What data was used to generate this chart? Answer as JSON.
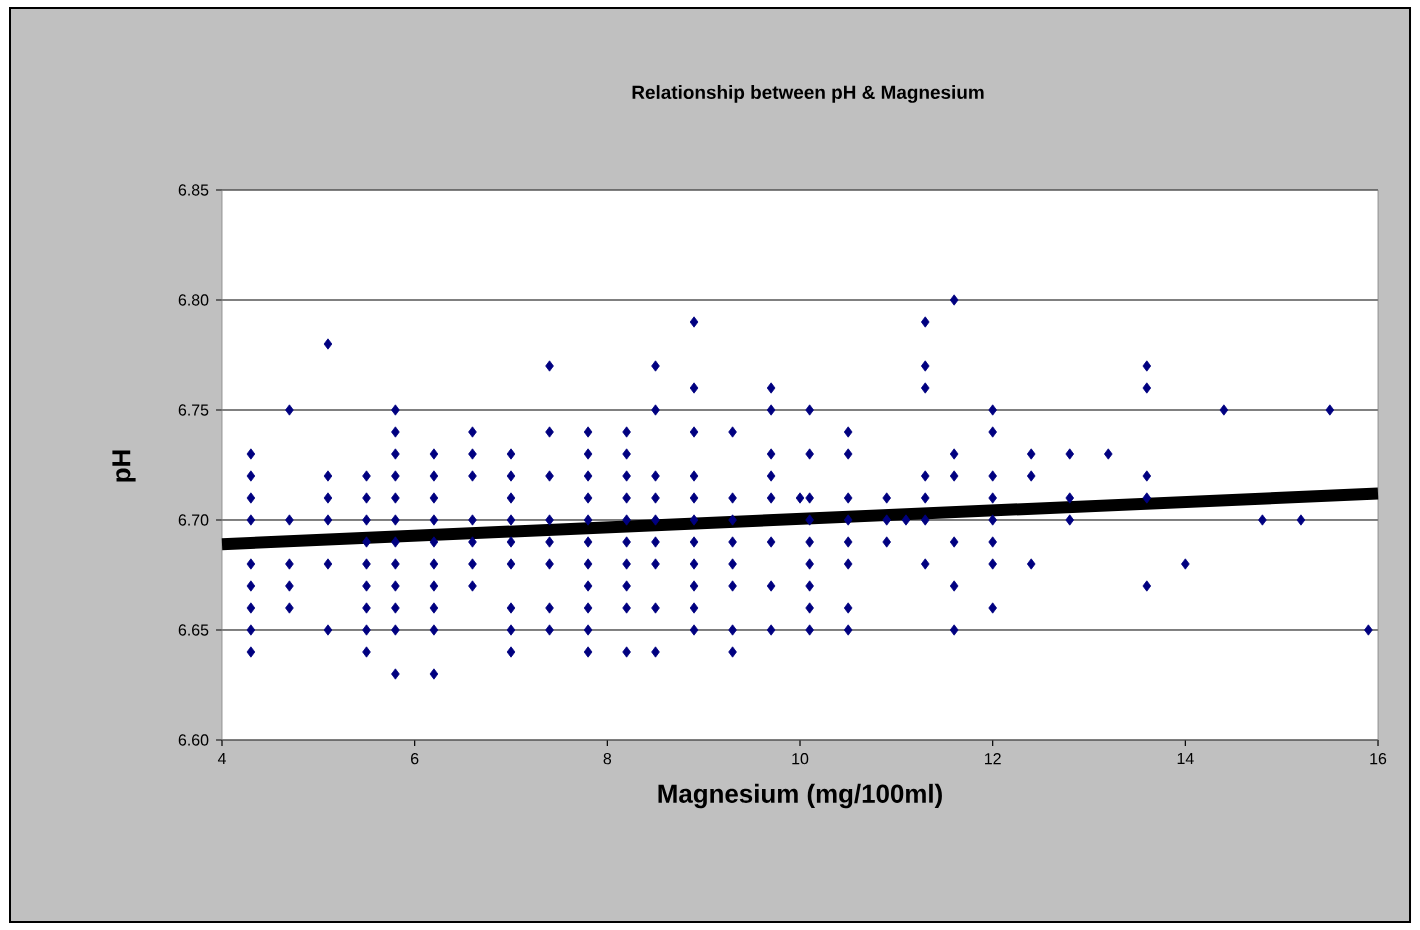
{
  "chart_data": {
    "type": "scatter",
    "title": "Relationship between pH & Magnesium",
    "xlabel": "Magnesium (mg/100ml)",
    "ylabel": "pH",
    "xlim": [
      4,
      16
    ],
    "ylim": [
      6.6,
      6.85
    ],
    "xticks": [
      4,
      6,
      8,
      10,
      12,
      14,
      16
    ],
    "yticks": [
      {
        "value": 6.6,
        "label": "6.60"
      },
      {
        "value": 6.65,
        "label": "6.65"
      },
      {
        "value": 6.7,
        "label": "6.70"
      },
      {
        "value": 6.75,
        "label": "6.75"
      },
      {
        "value": 6.8,
        "label": "6.80"
      },
      {
        "value": 6.85,
        "label": "6.85"
      }
    ],
    "grid": "y",
    "marker": "diamond",
    "series": [
      {
        "color": "#000080",
        "x": [
          4.3,
          4.3,
          4.3,
          4.3,
          4.3,
          4.3,
          4.3,
          4.3,
          4.3,
          4.7,
          4.7,
          4.7,
          4.7,
          4.7,
          5.1,
          5.1,
          5.1,
          5.1,
          5.1,
          5.1,
          5.5,
          5.5,
          5.5,
          5.5,
          5.5,
          5.5,
          5.5,
          5.5,
          5.5,
          5.8,
          5.8,
          5.8,
          5.8,
          5.8,
          5.8,
          5.8,
          5.8,
          5.8,
          5.8,
          5.8,
          5.8,
          6.2,
          6.2,
          6.2,
          6.2,
          6.2,
          6.2,
          6.2,
          6.2,
          6.2,
          6.2,
          6.6,
          6.6,
          6.6,
          6.6,
          6.6,
          6.6,
          6.6,
          7.0,
          7.0,
          7.0,
          7.0,
          7.0,
          7.0,
          7.0,
          7.0,
          7.0,
          7.4,
          7.4,
          7.4,
          7.4,
          7.4,
          7.4,
          7.4,
          7.4,
          7.8,
          7.8,
          7.8,
          7.8,
          7.8,
          7.8,
          7.8,
          7.8,
          7.8,
          7.8,
          7.8,
          8.2,
          8.2,
          8.2,
          8.2,
          8.2,
          8.2,
          8.2,
          8.2,
          8.2,
          8.2,
          8.5,
          8.5,
          8.5,
          8.5,
          8.5,
          8.5,
          8.5,
          8.5,
          8.5,
          8.9,
          8.9,
          8.9,
          8.9,
          8.9,
          8.9,
          8.9,
          8.9,
          8.9,
          8.9,
          8.9,
          9.3,
          9.3,
          9.3,
          9.3,
          9.3,
          9.3,
          9.3,
          9.3,
          9.7,
          9.7,
          9.7,
          9.7,
          9.7,
          9.7,
          9.7,
          9.7,
          10.0,
          10.1,
          10.1,
          10.1,
          10.1,
          10.1,
          10.1,
          10.1,
          10.1,
          10.1,
          10.5,
          10.5,
          10.5,
          10.5,
          10.5,
          10.5,
          10.5,
          10.5,
          10.9,
          10.9,
          10.9,
          11.1,
          11.3,
          11.3,
          11.3,
          11.3,
          11.3,
          11.3,
          11.3,
          11.6,
          11.6,
          11.6,
          11.6,
          11.6,
          11.6,
          12.0,
          12.0,
          12.0,
          12.0,
          12.0,
          12.0,
          12.0,
          12.0,
          12.4,
          12.4,
          12.4,
          12.8,
          12.8,
          12.8,
          13.2,
          13.6,
          13.6,
          13.6,
          13.6,
          13.6,
          14.0,
          14.4,
          14.8,
          15.2,
          15.5,
          15.9
        ],
        "values": [
          6.73,
          6.72,
          6.71,
          6.7,
          6.68,
          6.67,
          6.66,
          6.65,
          6.64,
          6.75,
          6.7,
          6.68,
          6.67,
          6.66,
          6.78,
          6.72,
          6.71,
          6.7,
          6.68,
          6.65,
          6.72,
          6.71,
          6.7,
          6.69,
          6.68,
          6.67,
          6.66,
          6.65,
          6.64,
          6.75,
          6.74,
          6.73,
          6.72,
          6.71,
          6.7,
          6.69,
          6.68,
          6.67,
          6.66,
          6.65,
          6.63,
          6.73,
          6.72,
          6.71,
          6.7,
          6.69,
          6.68,
          6.67,
          6.66,
          6.65,
          6.63,
          6.74,
          6.73,
          6.72,
          6.7,
          6.69,
          6.68,
          6.67,
          6.73,
          6.72,
          6.71,
          6.7,
          6.69,
          6.68,
          6.66,
          6.65,
          6.64,
          6.77,
          6.74,
          6.72,
          6.7,
          6.69,
          6.68,
          6.66,
          6.65,
          6.74,
          6.73,
          6.72,
          6.71,
          6.7,
          6.69,
          6.68,
          6.67,
          6.66,
          6.65,
          6.64,
          6.74,
          6.73,
          6.72,
          6.71,
          6.7,
          6.69,
          6.68,
          6.67,
          6.66,
          6.64,
          6.77,
          6.75,
          6.72,
          6.71,
          6.7,
          6.69,
          6.68,
          6.66,
          6.64,
          6.79,
          6.76,
          6.74,
          6.72,
          6.71,
          6.7,
          6.69,
          6.68,
          6.67,
          6.66,
          6.65,
          6.74,
          6.71,
          6.7,
          6.69,
          6.68,
          6.67,
          6.65,
          6.64,
          6.76,
          6.75,
          6.73,
          6.72,
          6.71,
          6.69,
          6.67,
          6.65,
          6.71,
          6.75,
          6.73,
          6.71,
          6.7,
          6.69,
          6.68,
          6.67,
          6.66,
          6.65,
          6.74,
          6.73,
          6.71,
          6.7,
          6.69,
          6.68,
          6.66,
          6.65,
          6.71,
          6.7,
          6.69,
          6.7,
          6.79,
          6.77,
          6.76,
          6.72,
          6.71,
          6.7,
          6.68,
          6.8,
          6.73,
          6.72,
          6.69,
          6.67,
          6.65,
          6.75,
          6.74,
          6.72,
          6.71,
          6.7,
          6.69,
          6.68,
          6.66,
          6.73,
          6.72,
          6.68,
          6.73,
          6.71,
          6.7,
          6.73,
          6.77,
          6.76,
          6.72,
          6.71,
          6.67,
          6.68,
          6.75,
          6.7,
          6.7,
          6.75,
          6.65
        ]
      },
      {
        "type": "line",
        "marker": "none",
        "color": "#000000",
        "x": [
          4,
          16
        ],
        "values": [
          6.689,
          6.712
        ]
      }
    ]
  }
}
